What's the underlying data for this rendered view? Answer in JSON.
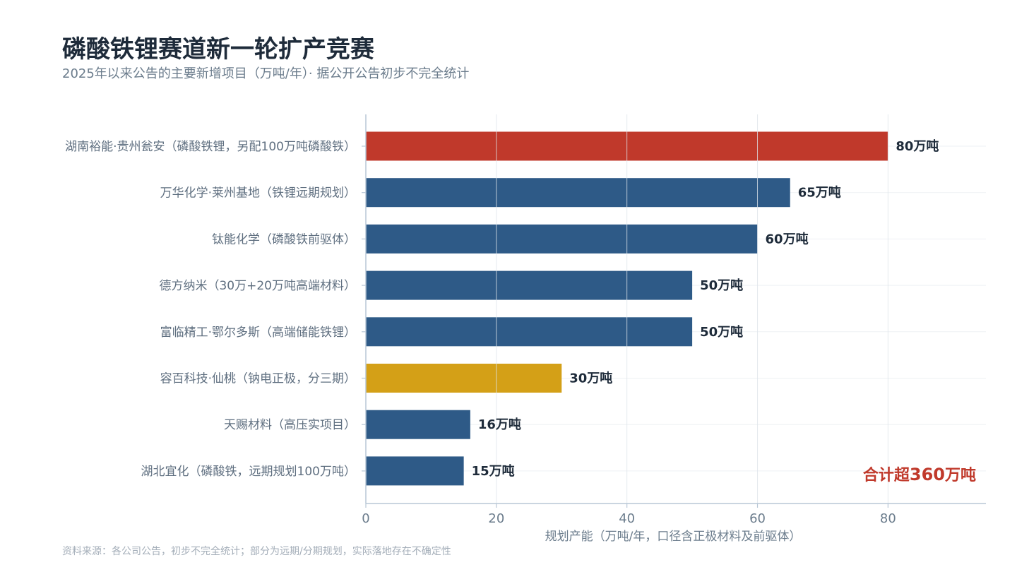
{
  "title": "磷酸铁锂赛道新一轮扩产竞赛",
  "subtitle": "2025年以来公告的主要新增项目（万吨/年）· 据公开公告初步不完全统计",
  "source": "资料来源：各公司公告，初步不完全统计；部分为远期/分期规划，实际落地存在不确定性",
  "chart_data": {
    "type": "bar",
    "orientation": "horizontal",
    "categories": [
      "湖南裕能·贵州瓮安（磷酸铁锂，另配100万吨磷酸铁）",
      "万华化学·莱州基地（铁锂远期规划）",
      "钛能化学（磷酸铁前驱体）",
      "德方纳米（30万+20万吨高端材料）",
      "富临精工·鄂尔多斯（高端储能铁锂）",
      "容百科技·仙桃（钠电正极，分三期）",
      "天赐材料（高压实项目）",
      "湖北宜化（磷酸铁，远期规划100万吨）"
    ],
    "values": [
      80,
      65,
      60,
      50,
      50,
      30,
      16,
      15
    ],
    "value_labels": [
      "80万吨",
      "65万吨",
      "60万吨",
      "50万吨",
      "50万吨",
      "30万吨",
      "16万吨",
      "15万吨"
    ],
    "bar_colors": [
      "#c0392b",
      "#2e5a87",
      "#2e5a87",
      "#2e5a87",
      "#2e5a87",
      "#d4a017",
      "#2e5a87",
      "#2e5a87"
    ],
    "xlabel": "规划产能（万吨/年，口径含正极材料及前驱体）",
    "xlim": [
      0,
      95
    ],
    "xticks": [
      0,
      20,
      40,
      60,
      80
    ],
    "grid": true,
    "annotation": {
      "text_prefix": "合计超",
      "text_number": "360",
      "text_suffix": "万吨",
      "color": "#c0392b"
    }
  }
}
